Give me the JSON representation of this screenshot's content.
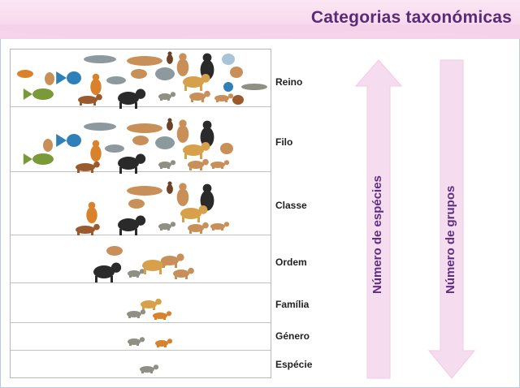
{
  "title": "Categorias taxonómicas",
  "ranks": [
    "Reino",
    "Filo",
    "Classe",
    "Ordem",
    "Família",
    "Género",
    "Espécie"
  ],
  "axis_labels": {
    "species": "Número de espécies",
    "groups": "Número de grupos"
  },
  "colors": {
    "title": "#5a2a78",
    "header_bg": "#f5d2ea",
    "arrow_fill": "#f6dcef",
    "label_text": "#5e2f80"
  }
}
